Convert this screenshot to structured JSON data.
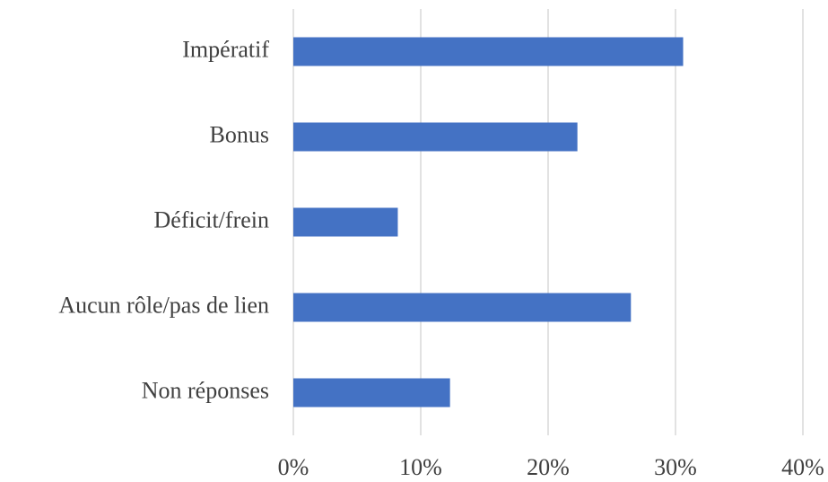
{
  "chart_data": {
    "type": "bar",
    "orientation": "horizontal",
    "categories": [
      "Impératif",
      "Bonus",
      "Déficit/frein",
      "Aucun rôle/pas de lien",
      "Non réponses"
    ],
    "values": [
      30.6,
      22.3,
      8.2,
      26.5,
      12.3
    ],
    "color": "#4472c4",
    "xlim": [
      0,
      40
    ],
    "xticks": [
      {
        "value": 0,
        "label": "0%"
      },
      {
        "value": 10,
        "label": "10%"
      },
      {
        "value": 20,
        "label": "20%"
      },
      {
        "value": 30,
        "label": "30%"
      },
      {
        "value": 40,
        "label": "40%"
      }
    ],
    "grid": true
  }
}
